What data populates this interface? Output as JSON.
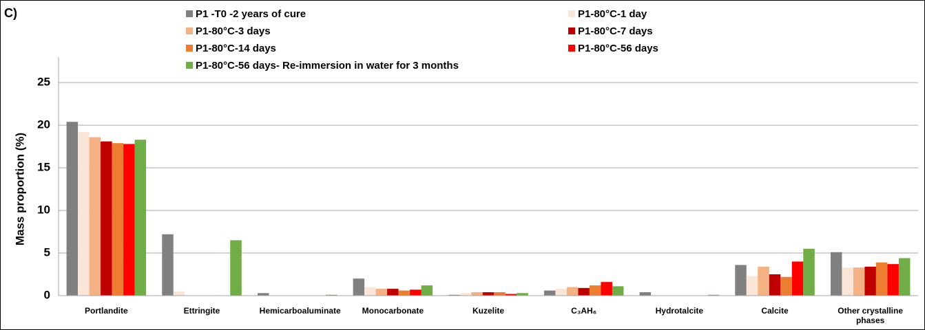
{
  "chart_data": {
    "type": "bar",
    "panel_label": "C)",
    "y_label": "Mass proportion (%)",
    "categories": [
      "Portlandite",
      "Ettringite",
      "Hemicarboaluminate",
      "Monocarbonate",
      "Kuzelite",
      "C₃AH₆",
      "Hydrotalcite",
      "Calcite",
      "Other crystalline phases"
    ],
    "series": [
      {
        "name": "P1 -T0 -2 years of cure",
        "color": "#808080",
        "values": [
          20.4,
          7.2,
          0.3,
          2.0,
          0.1,
          0.6,
          0.4,
          3.6,
          5.1
        ]
      },
      {
        "name": "P1-80°C-1 day",
        "color": "#fbe5d6",
        "values": [
          19.2,
          0.5,
          0,
          1.0,
          0.3,
          0.8,
          0,
          2.3,
          3.3
        ]
      },
      {
        "name": "P1-80°C-3 days",
        "color": "#f4b183",
        "values": [
          18.6,
          0,
          0,
          0.8,
          0.4,
          1.0,
          0,
          3.4,
          3.3
        ]
      },
      {
        "name": "P1-80°C-7 days",
        "color": "#c00000",
        "values": [
          18.1,
          0,
          0,
          0.8,
          0.4,
          0.9,
          0,
          2.5,
          3.4
        ]
      },
      {
        "name": "P1-80°C-14 days",
        "color": "#ed7d31",
        "values": [
          17.9,
          0,
          0,
          0.6,
          0.4,
          1.2,
          0,
          2.2,
          3.9
        ]
      },
      {
        "name": "P1-80°C-56 days",
        "color": "#ff0000",
        "values": [
          17.8,
          0,
          0,
          0.7,
          0.2,
          1.6,
          0,
          4.0,
          3.7
        ]
      },
      {
        "name": "P1-80°C-56 days- Re-immersion in water for 3 months",
        "color": "#70ad47",
        "values": [
          18.3,
          6.5,
          0.1,
          1.2,
          0.3,
          1.1,
          0.1,
          5.5,
          4.4
        ]
      }
    ],
    "ylim": [
      0,
      28
    ],
    "yticks": [
      0,
      5,
      10,
      15,
      20,
      25
    ],
    "grid": true,
    "legend": "top"
  }
}
